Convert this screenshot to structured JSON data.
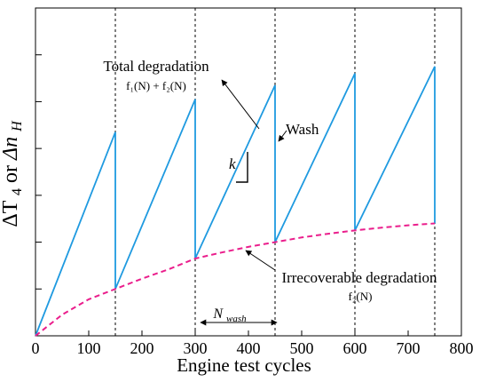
{
  "chart_data": {
    "type": "line",
    "title": "",
    "xlabel": "Engine test cycles",
    "ylabel": {
      "part1": "ΔT",
      "part1_sub": "4",
      "middle": " or ",
      "part2": "Δn",
      "part2_sub": "H"
    },
    "xlim": [
      0,
      800
    ],
    "ylim": [
      0,
      7
    ],
    "x_ticks": [
      0,
      100,
      200,
      300,
      400,
      500,
      600,
      700,
      800
    ],
    "x_tick_labels": [
      "0",
      "100",
      "200",
      "300",
      "400",
      "500",
      "600",
      "700",
      "800"
    ],
    "y_ticks_unlabeled": [
      1,
      2,
      3,
      4,
      5,
      6,
      7
    ],
    "wash_lines_x": [
      150,
      300,
      450,
      600,
      750
    ],
    "series": [
      {
        "id": "total",
        "color": "#1f9ae0",
        "style": "solid",
        "points": [
          [
            0,
            0
          ],
          [
            150,
            4.35
          ],
          [
            150,
            1.0
          ],
          [
            300,
            5.05
          ],
          [
            300,
            1.65
          ],
          [
            450,
            5.35
          ],
          [
            450,
            2.0
          ],
          [
            600,
            5.6
          ],
          [
            600,
            2.25
          ],
          [
            750,
            5.75
          ],
          [
            750,
            2.4
          ]
        ]
      },
      {
        "id": "irrecoverable",
        "color": "#ea1e8c",
        "style": "dashed",
        "points": [
          [
            0,
            0
          ],
          [
            50,
            0.45
          ],
          [
            100,
            0.78
          ],
          [
            150,
            1.0
          ],
          [
            200,
            1.22
          ],
          [
            250,
            1.42
          ],
          [
            300,
            1.65
          ],
          [
            350,
            1.78
          ],
          [
            400,
            1.9
          ],
          [
            450,
            2.0
          ],
          [
            500,
            2.1
          ],
          [
            550,
            2.18
          ],
          [
            600,
            2.25
          ],
          [
            650,
            2.31
          ],
          [
            700,
            2.36
          ],
          [
            750,
            2.4
          ]
        ]
      }
    ],
    "annotations": {
      "total_label": "Total degradation",
      "total_formula": "f₁(N) + f₂(N)",
      "wash_label": "Wash",
      "k_label": "k",
      "irrecoverable_label": "Irrecoverable degradation",
      "irrecoverable_formula": "f₂(N)",
      "nwash_label": "N",
      "nwash_sub": "wash"
    }
  }
}
